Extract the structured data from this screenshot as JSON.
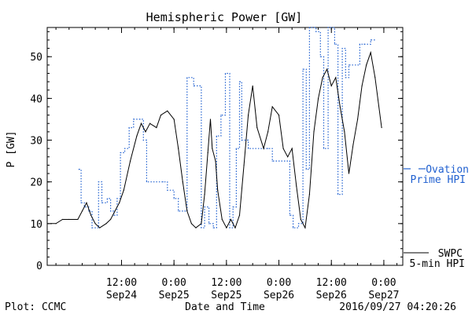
{
  "chart_data": {
    "type": "line",
    "title": "Hemispheric Power [GW]",
    "ylabel": "P [GW]",
    "xlabel": "Date and Time",
    "ylim": [
      0,
      57
    ],
    "yticks": [
      0,
      10,
      20,
      30,
      40,
      50
    ],
    "xlim": [
      "2016-09-23T19:00",
      "2016-09-27T04:20"
    ],
    "xticks": [
      {
        "time": "2016-09-24T12:00",
        "top": "12:00",
        "bottom": "Sep24"
      },
      {
        "time": "2016-09-25T00:00",
        "top": "0:00",
        "bottom": "Sep25"
      },
      {
        "time": "2016-09-25T12:00",
        "top": "12:00",
        "bottom": "Sep25"
      },
      {
        "time": "2016-09-26T00:00",
        "top": "0:00",
        "bottom": "Sep26"
      },
      {
        "time": "2016-09-26T12:00",
        "top": "12:00",
        "bottom": "Sep26"
      },
      {
        "time": "2016-09-27T00:00",
        "top": "0:00",
        "bottom": "Sep27"
      }
    ],
    "legend_position": "right",
    "series": [
      {
        "name": "Ovation Prime HPI",
        "legend_lines": [
          "Ovation",
          "Prime HPI"
        ],
        "color": "#2060d0",
        "style": "dotted-step",
        "points": [
          [
            "2016-09-24T02:15",
            23
          ],
          [
            "2016-09-24T02:45",
            15
          ],
          [
            "2016-09-24T03:30",
            14
          ],
          [
            "2016-09-24T04:30",
            13
          ],
          [
            "2016-09-24T05:15",
            9
          ],
          [
            "2016-09-24T06:45",
            20
          ],
          [
            "2016-09-24T07:30",
            15
          ],
          [
            "2016-09-24T08:45",
            16
          ],
          [
            "2016-09-24T09:30",
            13
          ],
          [
            "2016-09-24T10:15",
            12
          ],
          [
            "2016-09-24T11:00",
            16
          ],
          [
            "2016-09-24T11:45",
            27
          ],
          [
            "2016-09-24T12:45",
            28
          ],
          [
            "2016-09-24T13:45",
            33
          ],
          [
            "2016-09-24T14:45",
            35
          ],
          [
            "2016-09-24T16:15",
            35
          ],
          [
            "2016-09-24T17:00",
            30
          ],
          [
            "2016-09-24T17:45",
            20
          ],
          [
            "2016-09-24T21:30",
            20
          ],
          [
            "2016-09-24T22:30",
            18
          ],
          [
            "2016-09-25T00:00",
            16
          ],
          [
            "2016-09-25T01:00",
            13
          ],
          [
            "2016-09-25T02:30",
            13
          ],
          [
            "2016-09-25T03:00",
            45
          ],
          [
            "2016-09-25T04:30",
            43
          ],
          [
            "2016-09-25T06:15",
            9
          ],
          [
            "2016-09-25T07:00",
            14
          ],
          [
            "2016-09-25T08:00",
            10
          ],
          [
            "2016-09-25T09:00",
            9
          ],
          [
            "2016-09-25T09:45",
            31
          ],
          [
            "2016-09-25T10:45",
            36
          ],
          [
            "2016-09-25T11:45",
            46
          ],
          [
            "2016-09-25T12:45",
            9
          ],
          [
            "2016-09-25T13:30",
            14
          ],
          [
            "2016-09-25T14:15",
            28
          ],
          [
            "2016-09-25T15:00",
            44
          ],
          [
            "2016-09-25T15:30",
            30
          ],
          [
            "2016-09-25T17:00",
            28
          ],
          [
            "2016-09-25T21:30",
            28
          ],
          [
            "2016-09-25T22:30",
            25
          ],
          [
            "2016-09-26T02:30",
            12
          ],
          [
            "2016-09-26T03:15",
            9
          ],
          [
            "2016-09-26T04:30",
            10
          ],
          [
            "2016-09-26T05:30",
            47
          ],
          [
            "2016-09-26T06:15",
            23
          ],
          [
            "2016-09-26T07:00",
            57
          ],
          [
            "2016-09-26T08:30",
            56
          ],
          [
            "2016-09-26T09:30",
            50
          ],
          [
            "2016-09-26T10:15",
            28
          ],
          [
            "2016-09-26T11:15",
            57
          ],
          [
            "2016-09-26T12:45",
            53
          ],
          [
            "2016-09-26T13:30",
            17
          ],
          [
            "2016-09-26T14:30",
            52
          ],
          [
            "2016-09-26T15:15",
            45
          ],
          [
            "2016-09-26T16:00",
            48
          ],
          [
            "2016-09-26T18:30",
            53
          ],
          [
            "2016-09-26T19:30",
            53
          ],
          [
            "2016-09-26T21:00",
            54
          ]
        ]
      },
      {
        "name": "SWPC 5-min HPI",
        "legend_lines": [
          "SWPC",
          "5-min HPI"
        ],
        "color": "#000000",
        "style": "solid",
        "points": [
          [
            "2016-09-23T19:45",
            10
          ],
          [
            "2016-09-23T21:00",
            10
          ],
          [
            "2016-09-23T22:30",
            11
          ],
          [
            "2016-09-24T00:00",
            11
          ],
          [
            "2016-09-24T02:00",
            11
          ],
          [
            "2016-09-24T03:00",
            13
          ],
          [
            "2016-09-24T04:00",
            15
          ],
          [
            "2016-09-24T05:00",
            12
          ],
          [
            "2016-09-24T06:00",
            10
          ],
          [
            "2016-09-24T07:00",
            9
          ],
          [
            "2016-09-24T08:30",
            10
          ],
          [
            "2016-09-24T09:30",
            11
          ],
          [
            "2016-09-24T10:30",
            13
          ],
          [
            "2016-09-24T11:30",
            15
          ],
          [
            "2016-09-24T12:30",
            18
          ],
          [
            "2016-09-24T14:00",
            25
          ],
          [
            "2016-09-24T15:30",
            31
          ],
          [
            "2016-09-24T16:30",
            34
          ],
          [
            "2016-09-24T17:30",
            32
          ],
          [
            "2016-09-24T18:30",
            34
          ],
          [
            "2016-09-24T20:00",
            33
          ],
          [
            "2016-09-24T21:00",
            36
          ],
          [
            "2016-09-24T22:30",
            37
          ],
          [
            "2016-09-25T00:00",
            35
          ],
          [
            "2016-09-25T01:00",
            28
          ],
          [
            "2016-09-25T02:00",
            20
          ],
          [
            "2016-09-25T03:00",
            13
          ],
          [
            "2016-09-25T04:00",
            10
          ],
          [
            "2016-09-25T05:00",
            9
          ],
          [
            "2016-09-25T06:15",
            10
          ],
          [
            "2016-09-25T07:00",
            17
          ],
          [
            "2016-09-25T07:45",
            27
          ],
          [
            "2016-09-25T08:20",
            35
          ],
          [
            "2016-09-25T08:45",
            28
          ],
          [
            "2016-09-25T09:30",
            25
          ],
          [
            "2016-09-25T10:00",
            18
          ],
          [
            "2016-09-25T11:00",
            11
          ],
          [
            "2016-09-25T12:00",
            9
          ],
          [
            "2016-09-25T13:00",
            11
          ],
          [
            "2016-09-25T14:00",
            9
          ],
          [
            "2016-09-25T15:00",
            12
          ],
          [
            "2016-09-25T16:00",
            24
          ],
          [
            "2016-09-25T17:00",
            36
          ],
          [
            "2016-09-25T18:00",
            43
          ],
          [
            "2016-09-25T19:00",
            33
          ],
          [
            "2016-09-25T20:30",
            28
          ],
          [
            "2016-09-25T21:30",
            32
          ],
          [
            "2016-09-25T22:30",
            38
          ],
          [
            "2016-09-26T00:00",
            36
          ],
          [
            "2016-09-26T01:00",
            28
          ],
          [
            "2016-09-26T02:00",
            26
          ],
          [
            "2016-09-26T03:00",
            28
          ],
          [
            "2016-09-26T04:00",
            19
          ],
          [
            "2016-09-26T05:00",
            11
          ],
          [
            "2016-09-26T06:00",
            9
          ],
          [
            "2016-09-26T07:00",
            17
          ],
          [
            "2016-09-26T08:00",
            32
          ],
          [
            "2016-09-26T09:00",
            40
          ],
          [
            "2016-09-26T10:00",
            45
          ],
          [
            "2016-09-26T11:00",
            47
          ],
          [
            "2016-09-26T12:00",
            43
          ],
          [
            "2016-09-26T13:00",
            45
          ],
          [
            "2016-09-26T14:00",
            38
          ],
          [
            "2016-09-26T15:00",
            32
          ],
          [
            "2016-09-26T16:00",
            22
          ],
          [
            "2016-09-26T17:00",
            29
          ],
          [
            "2016-09-26T18:00",
            35
          ],
          [
            "2016-09-26T19:00",
            43
          ],
          [
            "2016-09-26T20:00",
            48
          ],
          [
            "2016-09-26T21:00",
            51
          ],
          [
            "2016-09-26T22:00",
            45
          ],
          [
            "2016-09-26T23:30",
            33
          ]
        ]
      }
    ]
  },
  "footer": {
    "left": "Plot: CCMC",
    "center": "Date and Time",
    "right": "2016/09/27 04:20:26"
  }
}
